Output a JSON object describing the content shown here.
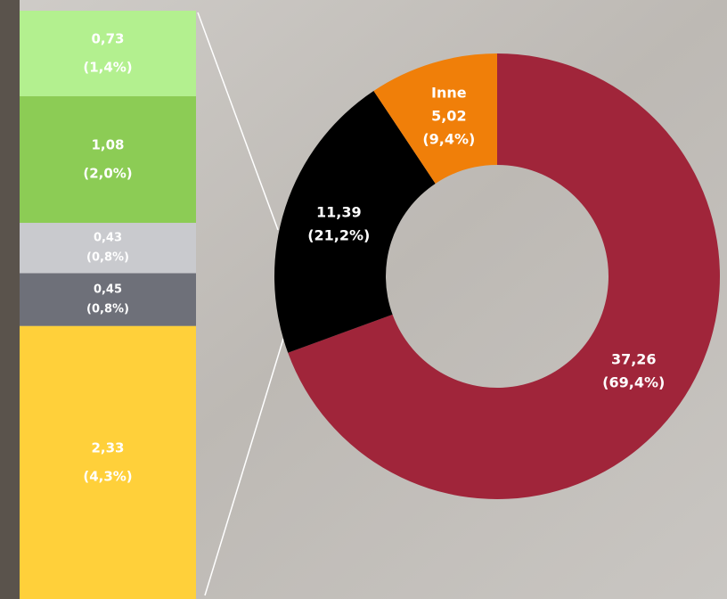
{
  "chart_data": [
    {
      "type": "pie",
      "donut": true,
      "categories": [
        null,
        null,
        "Inne"
      ],
      "values": [
        37.26,
        11.39,
        5.02
      ],
      "value_labels": [
        "37,26",
        "11,39",
        "5,02"
      ],
      "percents": [
        69.4,
        21.2,
        9.4
      ],
      "percent_labels": [
        "(69,4%)",
        "(21,2%)",
        "(9,4%)"
      ],
      "colors": [
        "#a0253a",
        "#000000",
        "#f07f09"
      ]
    },
    {
      "type": "bar",
      "stacked": true,
      "values": [
        2.33,
        0.45,
        0.43,
        1.08,
        0.73
      ],
      "value_labels": [
        "2,33",
        "0,45",
        "0,43",
        "1,08",
        "0,73"
      ],
      "percents": [
        4.3,
        0.8,
        0.8,
        2.0,
        1.4
      ],
      "percent_labels": [
        "(4,3%)",
        "(0,8%)",
        "(0,8%)",
        "(2,0%)",
        "(1,4%)"
      ],
      "colors": [
        "#ffd03a",
        "#6e7079",
        "#c9cace",
        "#8ccc55",
        "#b3f08f"
      ]
    }
  ]
}
